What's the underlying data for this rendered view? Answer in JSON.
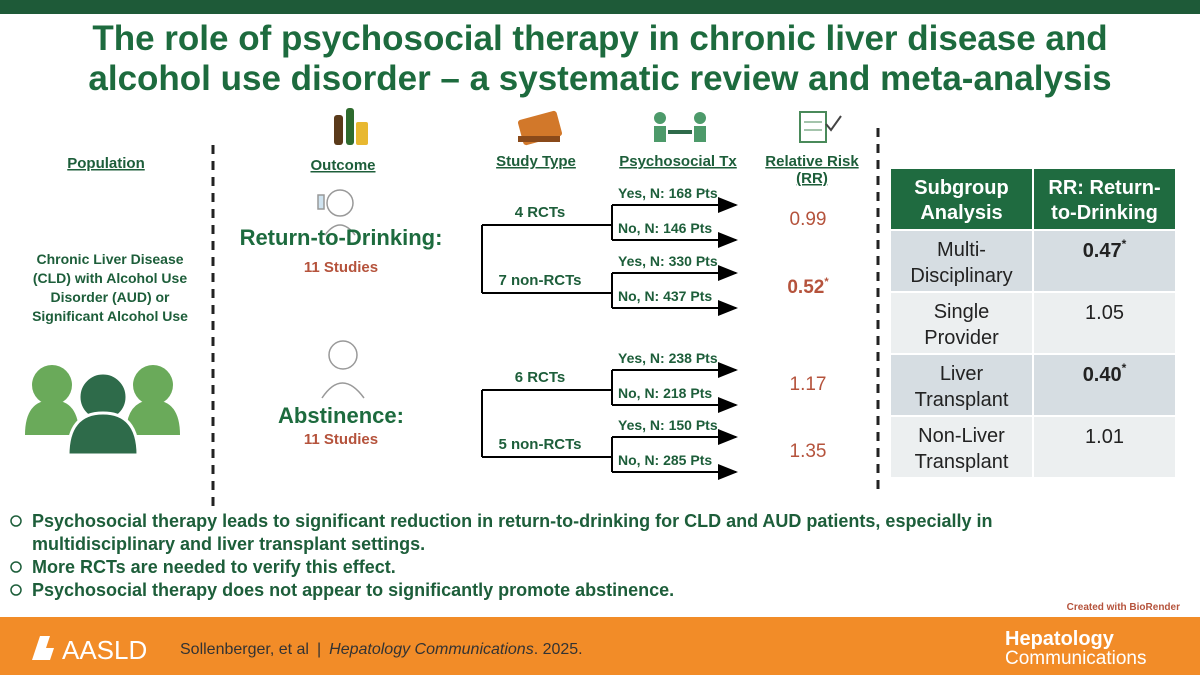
{
  "header": {
    "title_lines": [
      "The role of psychosocial therapy in chronic liver disease and",
      "alcohol use disorder – a systematic review and meta-analysis"
    ]
  },
  "columns": {
    "population": "Population",
    "outcome": "Outcome",
    "study_type": "Study Type",
    "psychosocial_tx": "Psychosocial Tx",
    "relative_risk_lines": [
      "Relative Risk",
      "(RR)"
    ]
  },
  "population": {
    "lines": [
      "Chronic Liver Disease",
      "(CLD) with Alcohol Use",
      "Disorder (AUD) or",
      "Significant Alcohol Use"
    ]
  },
  "outcomes": [
    {
      "name": "Return-to-Drinking:",
      "studies": "11 Studies",
      "groups": [
        {
          "label": "4 RCTs",
          "arms": [
            "Yes, N: 168 Pts",
            "No, N: 146 Pts"
          ],
          "rr": "0.99"
        },
        {
          "label": "7 non-RCTs",
          "arms": [
            "Yes, N: 330 Pts",
            "No, N: 437 Pts"
          ],
          "rr": "0.52",
          "rr_marker": "*"
        }
      ]
    },
    {
      "name": "Abstinence:",
      "studies": "11 Studies",
      "groups": [
        {
          "label": "6 RCTs",
          "arms": [
            "Yes, N: 238 Pts",
            "No, N: 218 Pts"
          ],
          "rr": "1.17"
        },
        {
          "label": "5 non-RCTs",
          "arms": [
            "Yes, N: 150 Pts",
            "No, N: 285 Pts"
          ],
          "rr": "1.35"
        }
      ]
    }
  ],
  "table": {
    "header": [
      [
        "Subgroup",
        "Analysis"
      ],
      [
        "RR: Return-",
        "to-Drinking"
      ]
    ],
    "rows": [
      {
        "subgroup_lines": [
          "Multi-",
          "Disciplinary"
        ],
        "rr": "0.47",
        "marker": "*"
      },
      {
        "subgroup_lines": [
          "Single",
          "Provider"
        ],
        "rr": "1.05"
      },
      {
        "subgroup_lines": [
          "Liver",
          "Transplant"
        ],
        "rr": "0.40",
        "marker": "*"
      },
      {
        "subgroup_lines": [
          "Non-Liver",
          "Transplant"
        ],
        "rr": "1.01"
      }
    ]
  },
  "bullets": [
    [
      "Psychosocial therapy leads to significant reduction in return-to-drinking for CLD and AUD patients, especially in",
      "multidisciplinary and liver transplant settings."
    ],
    [
      "More RCTs are needed to verify this effect."
    ],
    [
      "Psychosocial therapy does not appear to significantly promote abstinence."
    ]
  ],
  "credit": "Created with BioRender",
  "footer": {
    "society": "AASLD",
    "authors": "Sollenberger, et al",
    "separator": "|",
    "journal": "Hepatology Communications",
    "year": ". 2025.",
    "journal_logo_lines": [
      "Hepatology",
      "Communications"
    ]
  }
}
